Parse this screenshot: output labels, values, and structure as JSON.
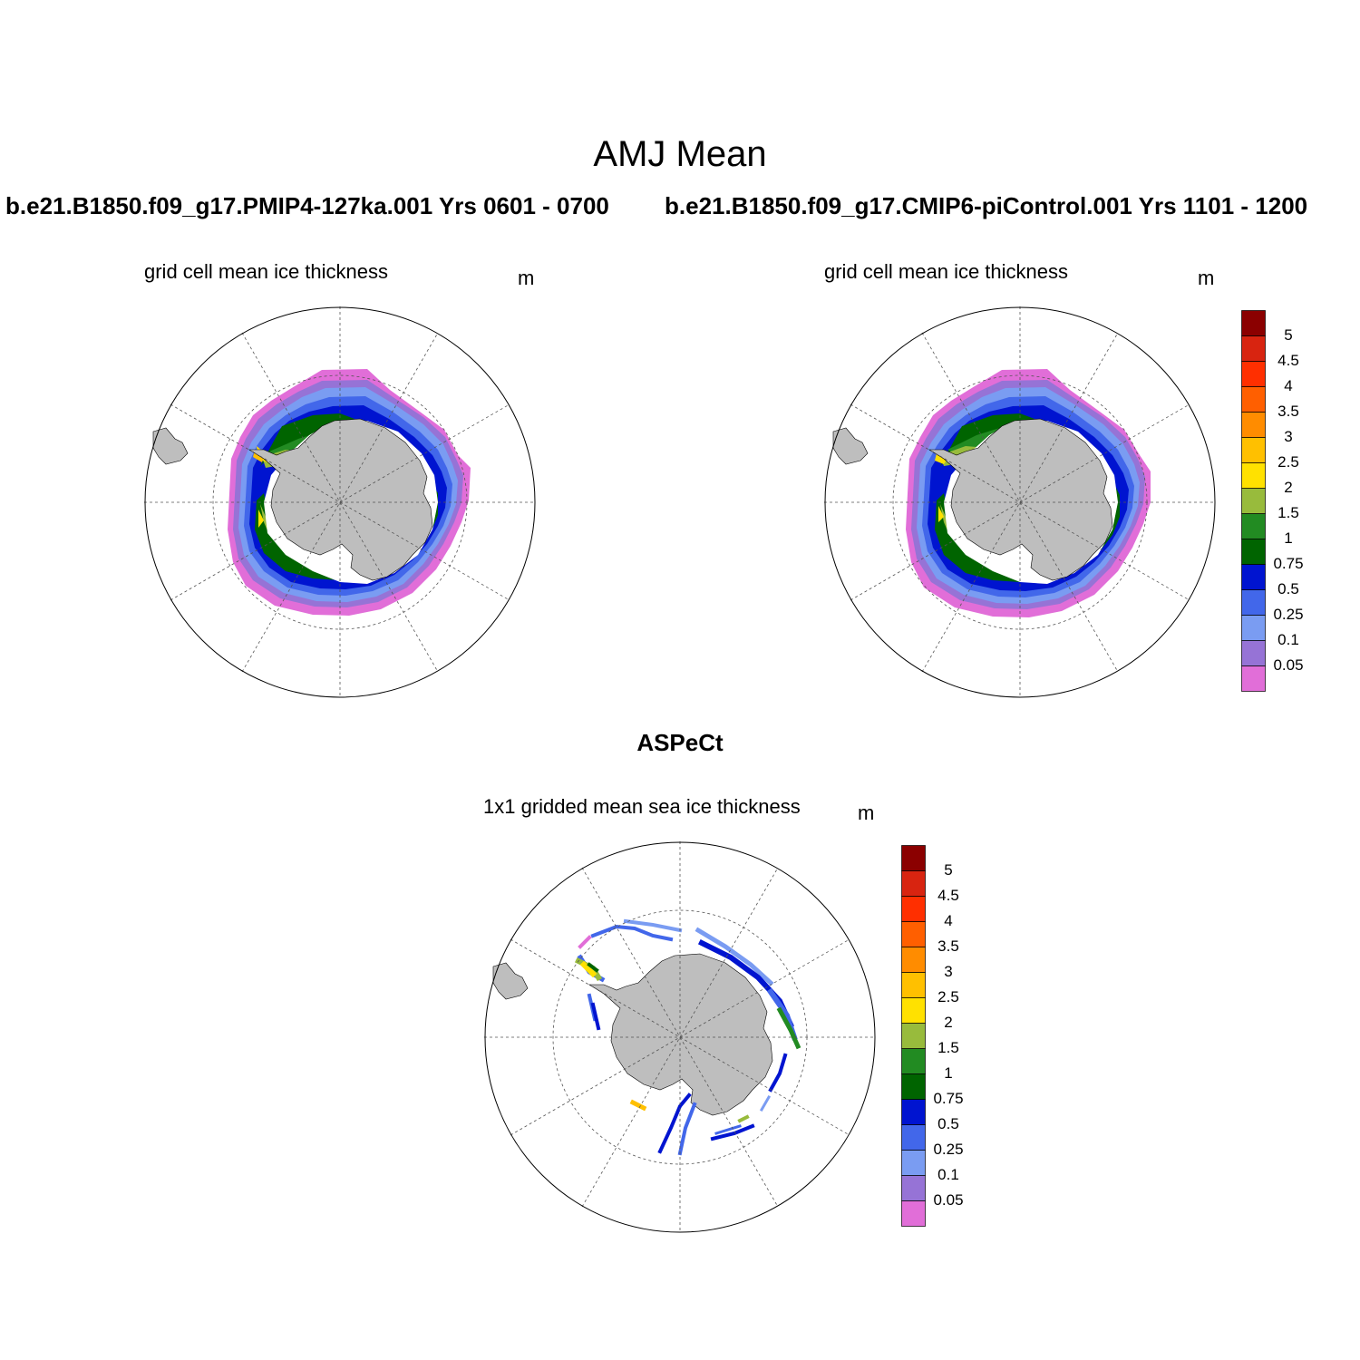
{
  "figure": {
    "title": "AMJ Mean",
    "colors": [
      "#e16ed8",
      "#9673d6",
      "#7a9cf2",
      "#4267ea",
      "#0014d0",
      "#006400",
      "#228b22",
      "#98bb3c",
      "#ffe100",
      "#ffc000",
      "#ff8c00",
      "#ff5f00",
      "#ff2f00",
      "#d82410",
      "#8b0000"
    ],
    "contour_levels": [
      "0.05",
      "0.1",
      "0.25",
      "0.5",
      "0.75",
      "1",
      "1.5",
      "2",
      "2.5",
      "3",
      "3.5",
      "4",
      "4.5",
      "5"
    ]
  },
  "panels": {
    "left": {
      "case": "b.e21.B1850.f09_g17.PMIP4-127ka.001  Yrs 0601 - 0700",
      "variable": "grid cell mean ice thickness",
      "units": "m"
    },
    "right": {
      "case": "b.e21.B1850.f09_g17.CMIP6-piControl.001  Yrs 1101 - 1200",
      "variable": "grid cell mean ice thickness",
      "units": "m"
    },
    "bottom": {
      "case": "ASPeCt",
      "variable": "1x1 gridded mean sea ice thickness",
      "units": "m"
    }
  }
}
